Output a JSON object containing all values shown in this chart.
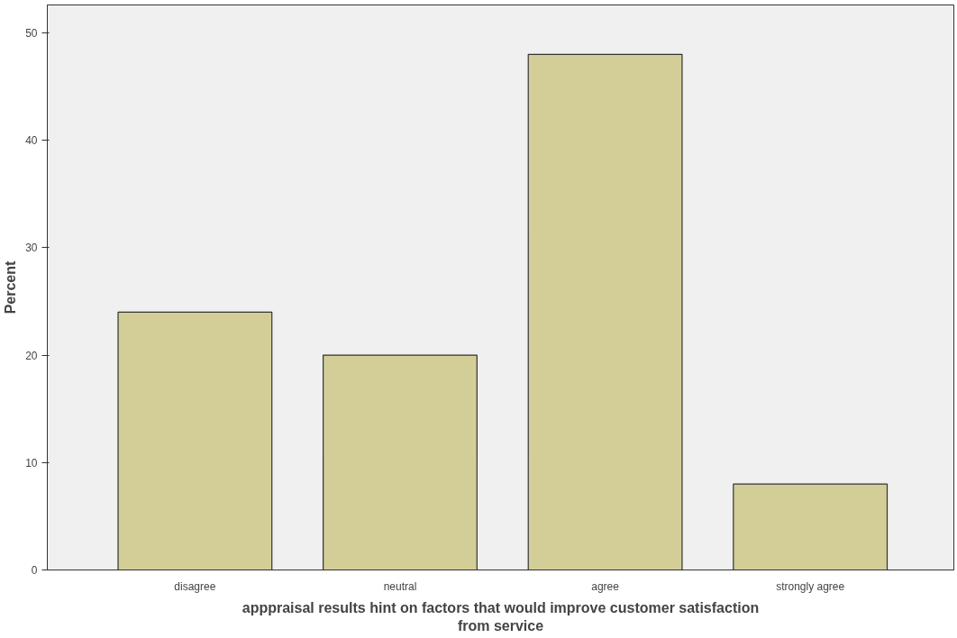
{
  "chart_data": {
    "type": "bar",
    "xlabel": "apppraisal results hint on factors that would improve customer satisfaction from service",
    "ylabel": "Percent",
    "categories": [
      "disagree",
      "neutral",
      "agree",
      "strongly agree"
    ],
    "values": [
      24,
      20,
      48,
      8
    ],
    "color": "#d3ce97",
    "ylim": [
      0,
      52.6
    ],
    "yticks": [
      0,
      10,
      20,
      30,
      40,
      50
    ],
    "grid": false
  }
}
